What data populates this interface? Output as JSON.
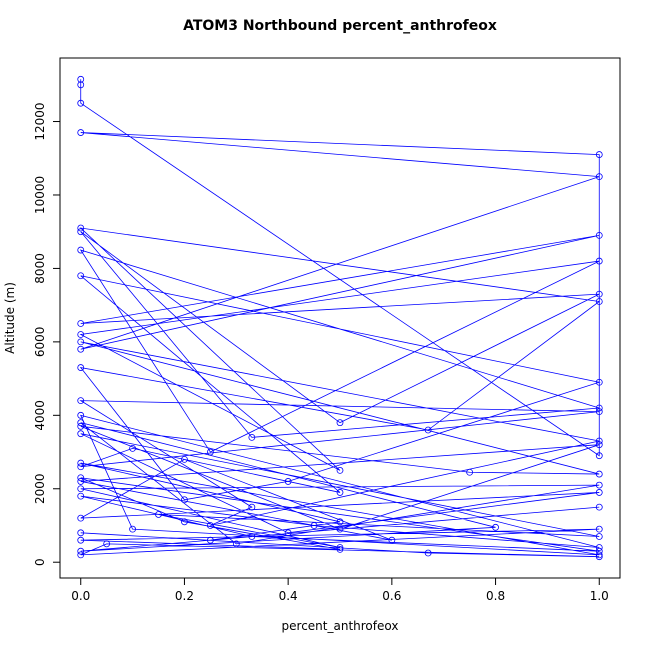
{
  "chart_data": {
    "type": "line",
    "title": "ATOM3 Northbound percent_anthrofeox",
    "x_label": "percent_anthrofeox",
    "y_label": "Altitude (m)",
    "series": [
      {
        "color": "#0000ff",
        "x": [
          0,
          0,
          0,
          1,
          1,
          0,
          1,
          0,
          1,
          0,
          1,
          0.5,
          0,
          0.33,
          1,
          0,
          0.25,
          1,
          0,
          0.5,
          0,
          1,
          0.67,
          0,
          0.2,
          0.4,
          1,
          0,
          0.5,
          0.1,
          0,
          1,
          0,
          0.33,
          0.25,
          1,
          0,
          1,
          0.75,
          0,
          0.5,
          1,
          0,
          0.6,
          0.2,
          0,
          1,
          0.4,
          0,
          1,
          0.15,
          0.5,
          0,
          1,
          0.3,
          0,
          0.8,
          0,
          1,
          0.25,
          0.5,
          0,
          1,
          0.1,
          0,
          1,
          0.45,
          0,
          0.33,
          1,
          0,
          0.2,
          0.5,
          0,
          1,
          0,
          0.05,
          1,
          0.67,
          0
        ],
        "values": [
          13150,
          13000,
          12500,
          2900,
          11100,
          11700,
          10500,
          5800,
          8900,
          6500,
          7300,
          3800,
          9000,
          3400,
          4200,
          8500,
          3000,
          8200,
          6200,
          2500,
          9100,
          7100,
          3600,
          5300,
          1700,
          2200,
          4900,
          7800,
          1900,
          3100,
          2600,
          4100,
          4400,
          1500,
          1000,
          3300,
          6000,
          2400,
          2450,
          3700,
          900,
          3200,
          2200,
          600,
          2800,
          1200,
          1900,
          800,
          3500,
          700,
          1300,
          400,
          2000,
          2100,
          500,
          3800,
          950,
          300,
          1500,
          600,
          1100,
          2700,
          200,
          900,
          4000,
          400,
          1000,
          1800,
          700,
          300,
          2300,
          1100,
          350,
          600,
          900,
          200,
          500,
          150,
          250,
          800
        ]
      }
    ],
    "xlim": [
      -0.04,
      1.04
    ],
    "ylim": [
      -430,
      13730
    ],
    "xticks": [
      {
        "value": 0,
        "label": "0.0"
      },
      0.2,
      0.4,
      0.6,
      0.8,
      {
        "value": 1,
        "label": "1.0"
      }
    ],
    "yticks": [
      0,
      2000,
      4000,
      6000,
      8000,
      10000,
      12000
    ]
  }
}
